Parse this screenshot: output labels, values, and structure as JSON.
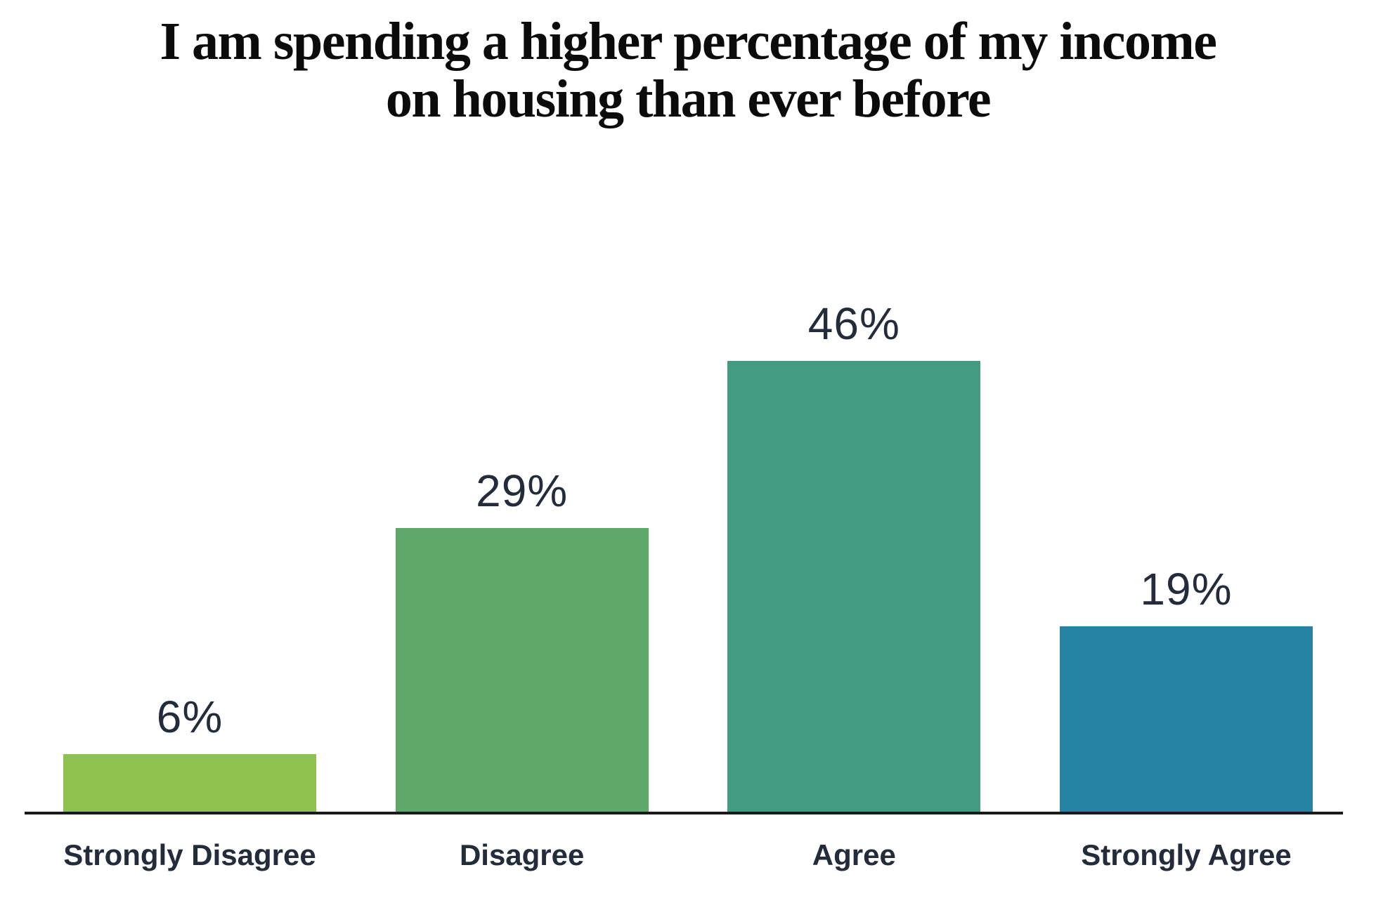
{
  "page": {
    "background": "#ffffff"
  },
  "chart_data": {
    "type": "bar",
    "title": "I am spending a higher percentage of my income on housing than ever before",
    "title_lines": [
      "I am spending a higher percentage of my income",
      "on housing than ever before"
    ],
    "categories": [
      "Strongly Disagree",
      "Disagree",
      "Agree",
      "Strongly Agree"
    ],
    "values": [
      6,
      29,
      46,
      19
    ],
    "value_labels": [
      "6%",
      "29%",
      "46%",
      "19%"
    ],
    "colors": [
      "#8CC24D",
      "#5EA969",
      "#439B82",
      "#2584A3"
    ],
    "ylim": [
      0,
      46
    ],
    "xlabel": "",
    "ylabel": "",
    "grid": false,
    "legend": "none",
    "axis_line_color": "#1a1a1a",
    "label_color": "#232C3A",
    "title_color": "#0B0B0C"
  }
}
